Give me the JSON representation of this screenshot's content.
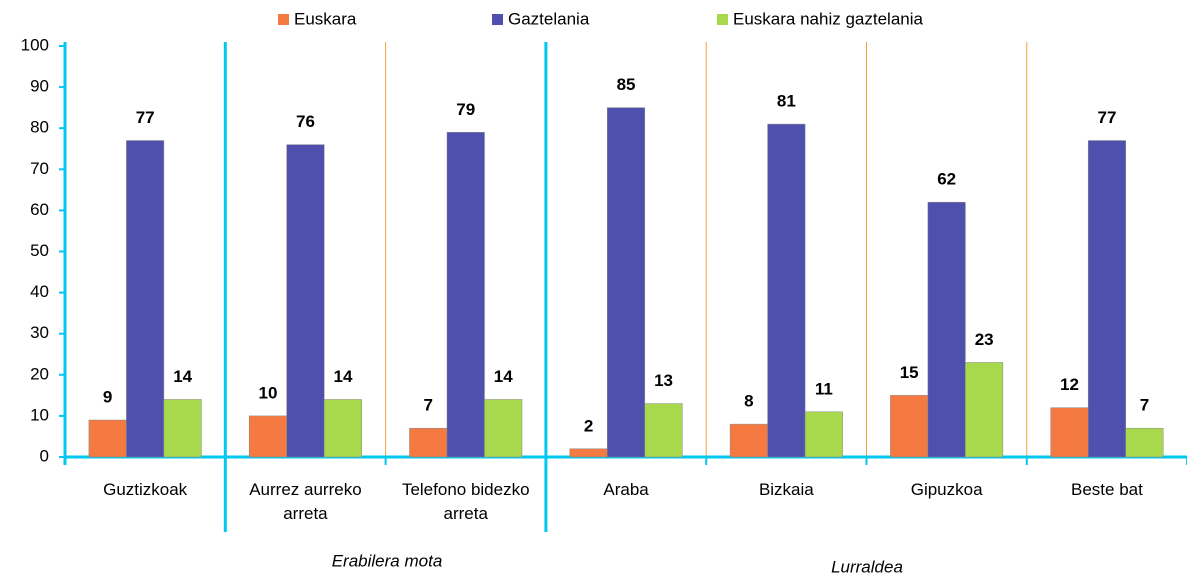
{
  "chart_data": {
    "type": "bar",
    "categories": [
      "Guztizkoak",
      "Aurrez aurreko arreta",
      "Telefono bidezko arreta",
      "Araba",
      "Bizkaia",
      "Gipuzkoa",
      "Beste bat"
    ],
    "series": [
      {
        "name": "Euskara",
        "color": "#f47a42",
        "values": [
          9,
          10,
          7,
          2,
          8,
          15,
          12
        ]
      },
      {
        "name": "Gaztelania",
        "color": "#4f4fae",
        "values": [
          77,
          76,
          79,
          85,
          81,
          62,
          77
        ]
      },
      {
        "name": "Euskara nahiz gaztelania",
        "color": "#a8d84c",
        "values": [
          14,
          14,
          14,
          13,
          11,
          23,
          7
        ]
      }
    ],
    "annotations": [
      "Erabilera mota",
      "Lurraldea"
    ],
    "ylim": [
      0,
      100
    ],
    "yticks": [
      0,
      10,
      20,
      30,
      40,
      50,
      60,
      70,
      80,
      90,
      100
    ]
  }
}
